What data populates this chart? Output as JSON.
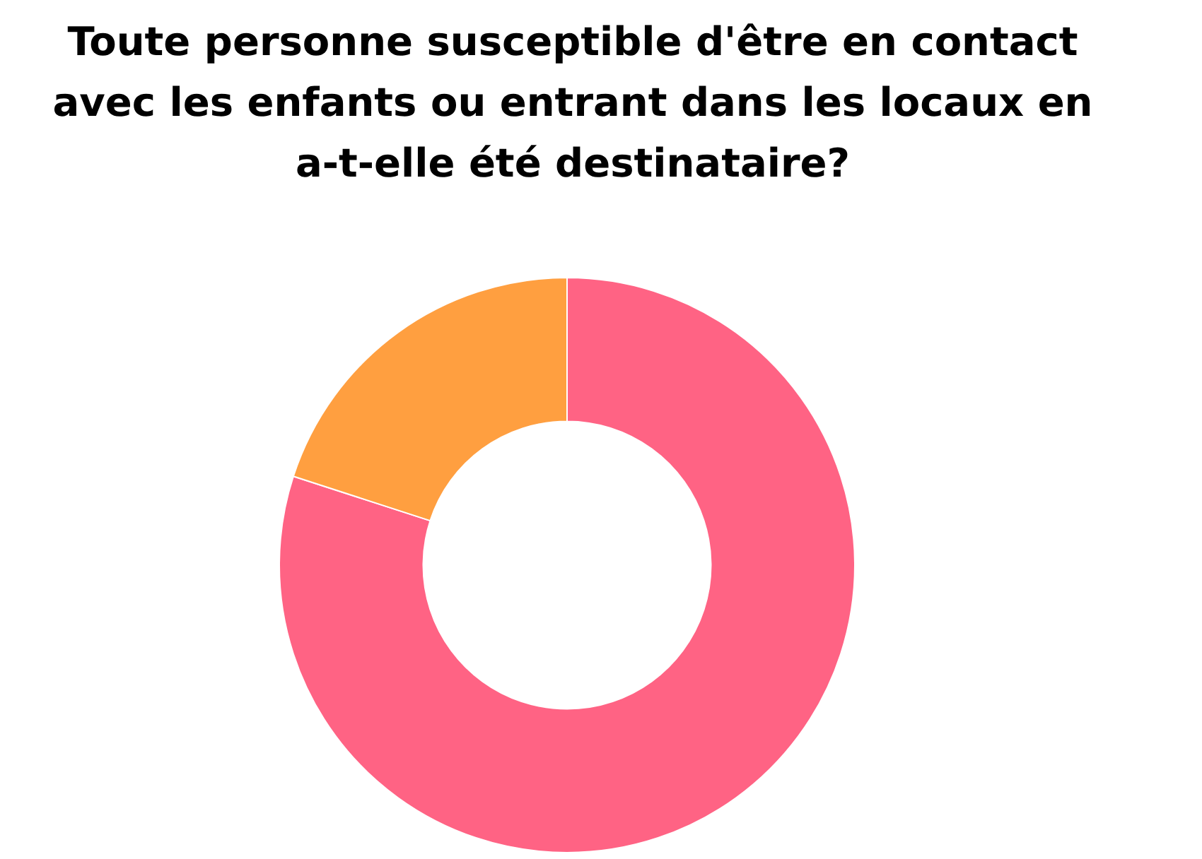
{
  "chart_data": {
    "type": "donut",
    "title": "Toute personne susceptible d'être en contact avec les enfants ou entrant dans les locaux en a-t-elle été destinataire?",
    "categories": [
      null,
      null
    ],
    "values": [
      80,
      20
    ],
    "colors": [
      "#ff6384",
      "#ff9f40"
    ],
    "legend": false
  }
}
